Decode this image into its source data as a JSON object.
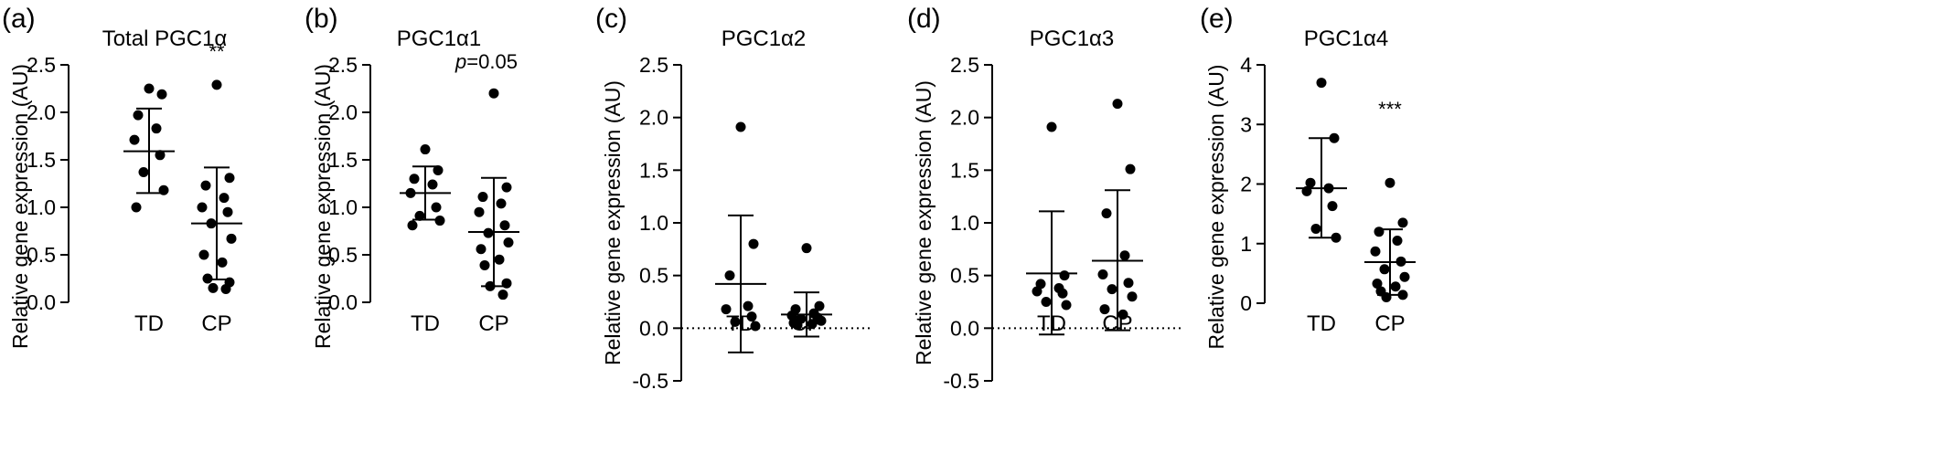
{
  "chart_data": [
    {
      "panel_label": "(a)",
      "title": "Total PGC1α",
      "type": "scatter",
      "ylabel": "Relative gene expression (AU)",
      "categories": [
        "TD",
        "CP"
      ],
      "ylim": [
        0,
        2.5
      ],
      "yticks": [
        "0.0",
        "0.5",
        "1.0",
        "1.5",
        "2.0",
        "2.5"
      ],
      "zero_line": false,
      "groups": [
        {
          "name": "TD",
          "mean": 1.59,
          "sd_low": 1.15,
          "sd_high": 2.04,
          "points": [
            2.25,
            2.19,
            1.97,
            1.83,
            1.71,
            1.55,
            1.37,
            1.18,
            1.0
          ]
        },
        {
          "name": "CP",
          "mean": 0.83,
          "sd_low": 0.24,
          "sd_high": 1.42,
          "points": [
            2.29,
            1.31,
            1.23,
            1.1,
            1.0,
            0.95,
            0.83,
            0.67,
            0.5,
            0.42,
            0.25,
            0.21,
            0.15,
            0.14
          ]
        }
      ],
      "annotation": "**"
    },
    {
      "panel_label": "(b)",
      "title": "PGC1α1",
      "type": "scatter",
      "ylabel": "Relative gene expression (AU)",
      "categories": [
        "TD",
        "CP"
      ],
      "ylim": [
        0,
        2.5
      ],
      "yticks": [
        "0.0",
        "0.5",
        "1.0",
        "1.5",
        "2.0",
        "2.5"
      ],
      "zero_line": false,
      "groups": [
        {
          "name": "TD",
          "mean": 1.15,
          "sd_low": 0.87,
          "sd_high": 1.43,
          "points": [
            1.61,
            1.39,
            1.3,
            1.24,
            1.15,
            1.0,
            0.91,
            0.86,
            0.81
          ]
        },
        {
          "name": "CP",
          "mean": 0.74,
          "sd_low": 0.17,
          "sd_high": 1.31,
          "points": [
            2.2,
            1.21,
            1.11,
            1.04,
            0.95,
            0.81,
            0.73,
            0.63,
            0.56,
            0.45,
            0.39,
            0.2,
            0.17,
            0.08
          ]
        }
      ],
      "annotation": "p=0.05"
    },
    {
      "panel_label": "(c)",
      "title": "PGC1α2",
      "type": "scatter",
      "ylabel": "Relative gene expression (AU)",
      "categories": [
        "TD",
        "CP"
      ],
      "ylim": [
        -0.5,
        2.5
      ],
      "yticks": [
        "-0.5",
        "0.0",
        "0.5",
        "1.0",
        "1.5",
        "2.0",
        "2.5"
      ],
      "zero_line": true,
      "groups": [
        {
          "name": "TD",
          "mean": 0.42,
          "sd_low": -0.23,
          "sd_high": 1.07,
          "points": [
            1.91,
            0.8,
            0.5,
            0.21,
            0.18,
            0.11,
            0.06,
            0.02
          ]
        },
        {
          "name": "CP",
          "mean": 0.13,
          "sd_low": -0.08,
          "sd_high": 0.34,
          "points": [
            0.76,
            0.21,
            0.18,
            0.14,
            0.12,
            0.1,
            0.09,
            0.07,
            0.05,
            0.04,
            0.03
          ]
        }
      ],
      "annotation": ""
    },
    {
      "panel_label": "(d)",
      "title": "PGC1α3",
      "type": "scatter",
      "ylabel": "Relative gene expression (AU)",
      "categories": [
        "TD",
        "CP"
      ],
      "ylim": [
        -0.5,
        2.5
      ],
      "yticks": [
        "-0.5",
        "0.0",
        "0.5",
        "1.0",
        "1.5",
        "2.0",
        "2.5"
      ],
      "zero_line": true,
      "groups": [
        {
          "name": "TD",
          "mean": 0.52,
          "sd_low": -0.06,
          "sd_high": 1.11,
          "points": [
            1.91,
            0.5,
            0.42,
            0.38,
            0.35,
            0.33,
            0.25,
            0.22
          ]
        },
        {
          "name": "CP",
          "mean": 0.64,
          "sd_low": -0.02,
          "sd_high": 1.31,
          "points": [
            2.13,
            1.51,
            1.09,
            0.69,
            0.51,
            0.43,
            0.37,
            0.3,
            0.18,
            0.13
          ]
        }
      ],
      "annotation": ""
    },
    {
      "panel_label": "(e)",
      "title": "PGC1α4",
      "type": "scatter",
      "ylabel": "Relative gene expression (AU)",
      "categories": [
        "TD",
        "CP"
      ],
      "ylim": [
        0,
        4
      ],
      "yticks": [
        "0",
        "1",
        "2",
        "3",
        "4"
      ],
      "zero_line": false,
      "groups": [
        {
          "name": "TD",
          "mean": 1.93,
          "sd_low": 1.1,
          "sd_high": 2.77,
          "points": [
            3.7,
            2.77,
            2.02,
            1.93,
            1.88,
            1.63,
            1.25,
            1.1
          ]
        },
        {
          "name": "CP",
          "mean": 0.69,
          "sd_low": 0.14,
          "sd_high": 1.24,
          "points": [
            2.02,
            1.35,
            1.2,
            1.05,
            0.87,
            0.7,
            0.57,
            0.44,
            0.33,
            0.28,
            0.2,
            0.14,
            0.1
          ]
        }
      ],
      "annotation": "***"
    }
  ]
}
